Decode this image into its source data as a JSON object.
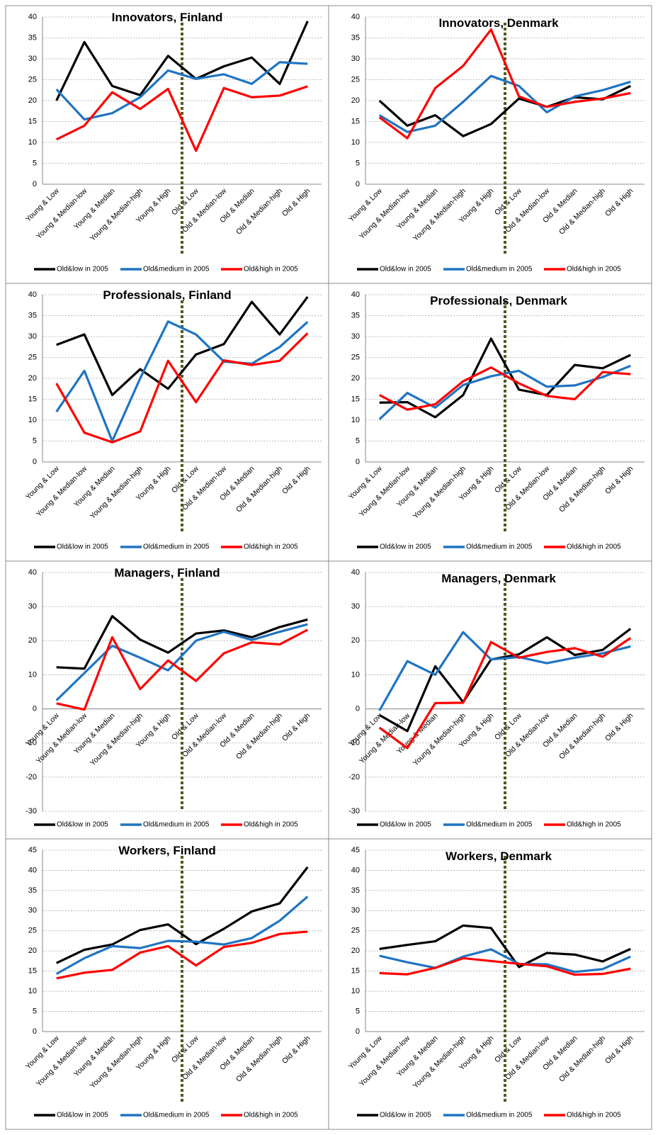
{
  "chart_data": [
    {
      "type": "line",
      "title": "Innovators, Finland",
      "categories": [
        "Young & Low",
        "Young & Median-low",
        "Young & Median",
        "Young & Median-high",
        "Young & High",
        "Old & Low",
        "Old & Median-low",
        "Old & Median",
        "Old & Median-high",
        "Old & High"
      ],
      "series": [
        {
          "name": "Old&low in 2005",
          "color": "#000000",
          "values": [
            20,
            34,
            23.5,
            21.3,
            30.7,
            25.2,
            28.2,
            30.3,
            24,
            39
          ]
        },
        {
          "name": "Old&medium in 2005",
          "color": "#1f74c2",
          "values": [
            22.7,
            15.5,
            17,
            20.8,
            27.2,
            25.2,
            26.3,
            24,
            29.2,
            28.8
          ]
        },
        {
          "name": "Old&high in 2005",
          "color": "#ff0000",
          "values": [
            10.7,
            14,
            22,
            18,
            22.8,
            8,
            23,
            20.8,
            21.2,
            23.4
          ]
        }
      ],
      "ylim": [
        0,
        40
      ],
      "yticks": [
        0,
        5,
        10,
        15,
        20,
        25,
        30,
        35,
        40
      ],
      "grid": true,
      "legend": "bottom"
    },
    {
      "type": "line",
      "title": "Innovators, Denmark",
      "categories": [
        "Young & Low",
        "Young & Median-low",
        "Young & Median",
        "Young & Median-high",
        "Young & High",
        "Old & Low",
        "Old & Median-low",
        "Old & Median",
        "Old & Median-high",
        "Old & High"
      ],
      "series": [
        {
          "name": "Old&low in 2005",
          "color": "#000000",
          "values": [
            20,
            14,
            16.5,
            11.5,
            14.4,
            20.5,
            18.5,
            20.8,
            20.3,
            23.5
          ]
        },
        {
          "name": "Old&medium in 2005",
          "color": "#1f74c2",
          "values": [
            16.5,
            12.5,
            14,
            19.7,
            25.9,
            23.5,
            17.2,
            21,
            22.5,
            24.5
          ]
        },
        {
          "name": "Old&high in 2005",
          "color": "#ff0000",
          "values": [
            16,
            11,
            23,
            28.3,
            37,
            21,
            18.5,
            19.7,
            20.5,
            21.8
          ]
        }
      ],
      "ylim": [
        0,
        40
      ],
      "yticks": [
        0,
        5,
        10,
        15,
        20,
        25,
        30,
        35,
        40
      ],
      "grid": true,
      "legend": "bottom"
    },
    {
      "type": "line",
      "title": "Professionals, Finland",
      "categories": [
        "Young & Low",
        "Young & Median-low",
        "Young & Median",
        "Young & Median-high",
        "Young & High",
        "Old & Low",
        "Old & Median-low",
        "Old & Median",
        "Old & Median-high",
        "Old & High"
      ],
      "series": [
        {
          "name": "Old&low in 2005",
          "color": "#000000",
          "values": [
            28,
            30.5,
            16,
            22.2,
            17.5,
            25.7,
            28.2,
            38.3,
            30.5,
            39.5
          ]
        },
        {
          "name": "Old&medium in 2005",
          "color": "#1f74c2",
          "values": [
            12,
            21.8,
            5,
            20,
            33.6,
            30.5,
            24,
            23.5,
            27.5,
            33.5
          ]
        },
        {
          "name": "Old&high in 2005",
          "color": "#ff0000",
          "values": [
            18.8,
            7,
            4.7,
            7.3,
            24.2,
            14.3,
            24.3,
            23.2,
            24.2,
            30.8
          ]
        }
      ],
      "ylim": [
        0,
        40
      ],
      "yticks": [
        0,
        5,
        10,
        15,
        20,
        25,
        30,
        35,
        40
      ],
      "grid": true,
      "legend": "bottom"
    },
    {
      "type": "line",
      "title": "Professionals, Denmark",
      "categories": [
        "Young & Low",
        "Young & Median-low",
        "Young & Median",
        "Young & Median-high",
        "Young & High",
        "Old & Low",
        "Old & Median-low",
        "Old & Median",
        "Old & Median-high",
        "Old & High"
      ],
      "series": [
        {
          "name": "Old&low in 2005",
          "color": "#000000",
          "values": [
            14.2,
            14.3,
            10.7,
            16,
            29.5,
            17.3,
            16,
            23.2,
            22.4,
            25.6
          ]
        },
        {
          "name": "Old&medium in 2005",
          "color": "#1f74c2",
          "values": [
            10.2,
            16.5,
            13,
            18.4,
            20.5,
            21.8,
            18,
            18.3,
            20.3,
            23
          ]
        },
        {
          "name": "Old&high in 2005",
          "color": "#ff0000",
          "values": [
            16,
            12.5,
            13.8,
            19.3,
            22.6,
            18.8,
            15.8,
            15,
            21.5,
            21
          ]
        }
      ],
      "ylim": [
        0,
        40
      ],
      "yticks": [
        0,
        5,
        10,
        15,
        20,
        25,
        30,
        35,
        40
      ],
      "grid": true,
      "legend": "bottom"
    },
    {
      "type": "line",
      "title": "Managers, Finland",
      "categories": [
        "Young & Low",
        "Young & Median-low",
        "Young & Median",
        "Young & Median-high",
        "Young & High",
        "Old & Low",
        "Old & Median-low",
        "Old & Median",
        "Old & Median-high",
        "Old & High"
      ],
      "series": [
        {
          "name": "Old&low in 2005",
          "color": "#000000",
          "values": [
            12.2,
            11.8,
            27.2,
            20.3,
            16.5,
            22.1,
            23,
            21,
            24,
            26.2
          ]
        },
        {
          "name": "Old&medium in 2005",
          "color": "#1f74c2",
          "values": [
            2.5,
            10.5,
            18.5,
            15,
            11.3,
            20,
            22.6,
            20.2,
            22.6,
            24.8
          ]
        },
        {
          "name": "Old&high in 2005",
          "color": "#ff0000",
          "values": [
            1.6,
            -0.2,
            21,
            5.8,
            14.2,
            8.2,
            16.3,
            19.5,
            18.9,
            23.2
          ]
        }
      ],
      "ylim": [
        -30,
        40
      ],
      "yticks": [
        -30,
        -20,
        -10,
        0,
        10,
        20,
        30,
        40
      ],
      "grid": true,
      "legend": "bottom"
    },
    {
      "type": "line",
      "title": "Managers, Denmark",
      "categories": [
        "Young & Low",
        "Young & Median-low",
        "Young & Median",
        "Young & Median-high",
        "Young & High",
        "Old & Low",
        "Old & Median-low",
        "Old & Median",
        "Old & Median-high",
        "Old & High"
      ],
      "series": [
        {
          "name": "Old&low in 2005",
          "color": "#000000",
          "values": [
            -1.8,
            -6.5,
            12.5,
            2,
            14.5,
            16,
            21,
            15.8,
            17.3,
            23.5
          ]
        },
        {
          "name": "Old&medium in 2005",
          "color": "#1f74c2",
          "values": [
            -0.5,
            14,
            10,
            22.5,
            14.5,
            15.2,
            13.4,
            15,
            16.3,
            18.3
          ]
        },
        {
          "name": "Old&high in 2005",
          "color": "#ff0000",
          "values": [
            -5.5,
            -11.5,
            1.7,
            1.8,
            19.6,
            15,
            16.7,
            17.8,
            15.3,
            20.8
          ]
        }
      ],
      "ylim": [
        -30,
        40
      ],
      "yticks": [
        -30,
        -20,
        -10,
        0,
        10,
        20,
        30,
        40
      ],
      "grid": true,
      "legend": "bottom"
    },
    {
      "type": "line",
      "title": "Workers, Finland",
      "categories": [
        "Young & Low",
        "Young & Median-low",
        "Young & Median",
        "Young & Median-high",
        "Young & High",
        "Old & Low",
        "Old & Median-low",
        "Old & Median",
        "Old & Median-high",
        "Old & High"
      ],
      "series": [
        {
          "name": "Old&low in 2005",
          "color": "#000000",
          "values": [
            17,
            20.3,
            21.6,
            25.2,
            26.6,
            21.7,
            25.5,
            29.8,
            31.8,
            40.8
          ]
        },
        {
          "name": "Old&medium in 2005",
          "color": "#1f74c2",
          "values": [
            14.3,
            18.2,
            21.2,
            20.7,
            22.5,
            22.3,
            21.6,
            23.2,
            27.5,
            33.5
          ]
        },
        {
          "name": "Old&high in 2005",
          "color": "#ff0000",
          "values": [
            13.2,
            14.6,
            15.3,
            19.6,
            21.2,
            16.4,
            21,
            22,
            24.2,
            24.8
          ]
        }
      ],
      "ylim": [
        0,
        45
      ],
      "yticks": [
        0,
        5,
        10,
        15,
        20,
        25,
        30,
        35,
        40,
        45
      ],
      "grid": true,
      "legend": "bottom"
    },
    {
      "type": "line",
      "title": "Workers, Denmark",
      "categories": [
        "Young & Low",
        "Young & Median-low",
        "Young & Median",
        "Young & Median-high",
        "Young & High",
        "Old & Low",
        "Old & Median-low",
        "Old & Median",
        "Old & Median-high",
        "Old & High"
      ],
      "series": [
        {
          "name": "Old&low in 2005",
          "color": "#000000",
          "values": [
            20.5,
            21.5,
            22.4,
            26.3,
            25.7,
            16,
            19.5,
            19.1,
            17.4,
            20.5
          ]
        },
        {
          "name": "Old&medium in 2005",
          "color": "#1f74c2",
          "values": [
            18.8,
            17.2,
            15.8,
            18.6,
            20.4,
            16.8,
            16.7,
            14.8,
            15.5,
            18.6
          ]
        },
        {
          "name": "Old&high in 2005",
          "color": "#ff0000",
          "values": [
            14.5,
            14.2,
            15.8,
            18.2,
            17.5,
            16.8,
            16.2,
            14.1,
            14.3,
            15.6
          ]
        }
      ],
      "ylim": [
        0,
        45
      ],
      "yticks": [
        0,
        5,
        10,
        15,
        20,
        25,
        30,
        35,
        40,
        45
      ],
      "grid": true,
      "legend": "bottom"
    }
  ]
}
